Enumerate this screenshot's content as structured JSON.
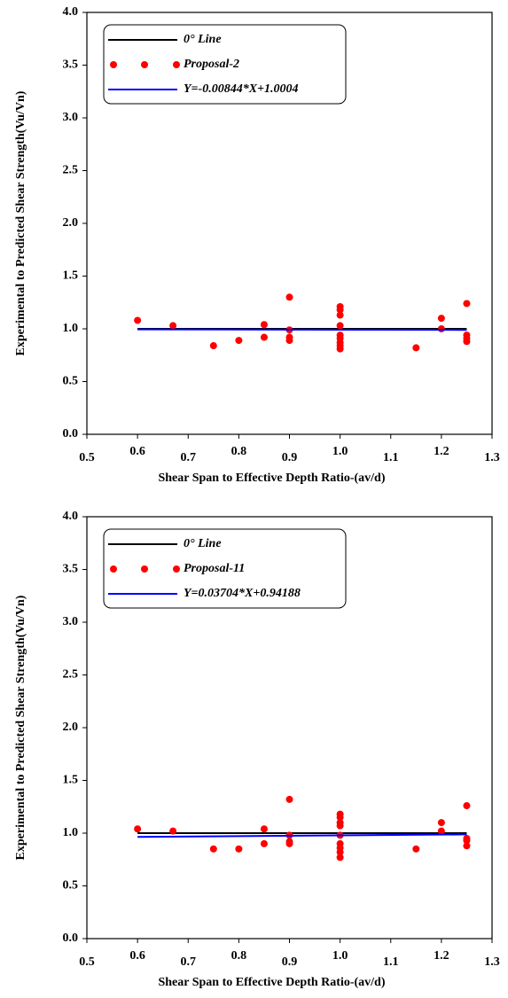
{
  "chart_data": [
    {
      "type": "scatter",
      "xlabel": "Shear Span to Effective Depth Ratio-(av/d)",
      "ylabel": "Experimental to Predicted Shear Strength(Vu/Vn)",
      "xlim": [
        0.5,
        1.3
      ],
      "ylim": [
        0,
        4
      ],
      "xticks": [
        0.5,
        0.6,
        0.7,
        0.8,
        0.9,
        {
          "value": 1,
          "label": "1.0"
        },
        1.1,
        1.2,
        1.3
      ],
      "yticks": [
        {
          "value": 0,
          "label": "0.0"
        },
        0.5,
        {
          "value": 1,
          "label": "1.0"
        },
        1.5,
        {
          "value": 2,
          "label": "2.0"
        },
        2.5,
        {
          "value": 3,
          "label": "3.0"
        },
        3.5,
        {
          "value": 4,
          "label": "4.0"
        }
      ],
      "legend": "upper left",
      "series": [
        {
          "name": "0° Line",
          "color": "#000000",
          "mode": "line",
          "x": [
            0.6,
            1.25
          ],
          "values": [
            1,
            1
          ]
        },
        {
          "name": "Proposal-2",
          "color": "#ff0000",
          "mode": "markers",
          "x": [
            0.6,
            0.67,
            0.75,
            0.8,
            0.85,
            0.85,
            0.9,
            0.9,
            0.9,
            0.9,
            1,
            1,
            1,
            1,
            1,
            1,
            1,
            1,
            1,
            1.15,
            1.2,
            1.2,
            1.25,
            1.25,
            1.25,
            1.25
          ],
          "values": [
            1.08,
            1.03,
            0.84,
            0.89,
            1.04,
            0.92,
            1.3,
            0.99,
            0.92,
            0.89,
            1.21,
            1.18,
            1.13,
            1.03,
            0.94,
            0.91,
            0.87,
            0.84,
            0.81,
            0.82,
            1.1,
            1.0,
            1.24,
            0.94,
            0.91,
            0.88
          ]
        },
        {
          "name": "Y=-0.00844*X+1.0004",
          "color": "#0000ff",
          "mode": "line",
          "x": [
            0.6,
            1.25
          ],
          "values": [
            0.995,
            0.99
          ]
        }
      ]
    },
    {
      "type": "scatter",
      "xlabel": "Shear Span to Effective Depth Ratio-(av/d)",
      "ylabel": "Experimental to Predicted Shear Strength(Vu/Vn)",
      "xlim": [
        0.5,
        1.3
      ],
      "ylim": [
        0,
        4
      ],
      "xticks": [
        0.5,
        0.6,
        0.7,
        0.8,
        0.9,
        {
          "value": 1,
          "label": "1.0"
        },
        1.1,
        1.2,
        1.3
      ],
      "yticks": [
        {
          "value": 0,
          "label": "0.0"
        },
        0.5,
        {
          "value": 1,
          "label": "1.0"
        },
        1.5,
        {
          "value": 2,
          "label": "2.0"
        },
        2.5,
        {
          "value": 3,
          "label": "3.0"
        },
        3.5,
        {
          "value": 4,
          "label": "4.0"
        }
      ],
      "legend": "upper left",
      "series": [
        {
          "name": "0° Line",
          "color": "#000000",
          "mode": "line",
          "x": [
            0.6,
            1.25
          ],
          "values": [
            1,
            1
          ]
        },
        {
          "name": "Proposal-11",
          "color": "#ff0000",
          "mode": "markers",
          "x": [
            0.6,
            0.67,
            0.75,
            0.8,
            0.85,
            0.85,
            0.9,
            0.9,
            0.9,
            0.9,
            1,
            1,
            1,
            1,
            1,
            1,
            1,
            1,
            1,
            1.15,
            1.2,
            1.2,
            1.25,
            1.25,
            1.25,
            1.25
          ],
          "values": [
            1.04,
            1.02,
            0.85,
            0.85,
            1.04,
            0.9,
            1.32,
            0.98,
            0.92,
            0.9,
            1.18,
            1.15,
            1.1,
            1.07,
            0.98,
            0.9,
            0.86,
            0.82,
            0.77,
            0.85,
            1.1,
            1.02,
            1.26,
            0.95,
            0.93,
            0.88
          ]
        },
        {
          "name": "Y=0.03704*X+0.94188",
          "color": "#0000ff",
          "mode": "line",
          "x": [
            0.6,
            1.25
          ],
          "values": [
            0.964,
            0.988
          ]
        }
      ]
    }
  ]
}
